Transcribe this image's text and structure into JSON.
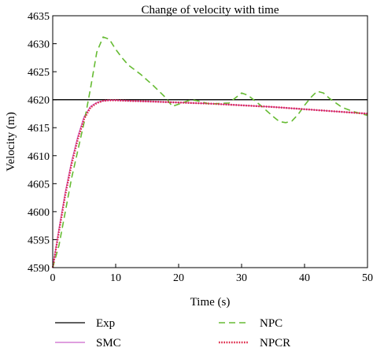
{
  "chart_data": {
    "type": "line",
    "title": "Change of velocity with time",
    "xlabel": "Time (s)",
    "ylabel": "Velocity (m)",
    "xlim": [
      0,
      50
    ],
    "ylim": [
      4590,
      4635
    ],
    "xticks": [
      0,
      10,
      20,
      30,
      40,
      50
    ],
    "yticks": [
      4590,
      4595,
      4600,
      4605,
      4610,
      4615,
      4620,
      4625,
      4630,
      4635
    ],
    "grid": false,
    "legend_position": "bottom",
    "series": [
      {
        "name": "Exp",
        "color": "#000000",
        "style": "solid",
        "x": [
          0,
          50
        ],
        "y": [
          4620,
          4620
        ]
      },
      {
        "name": "SMC",
        "color": "#cc66cc",
        "style": "solid",
        "x": [
          0,
          1,
          2,
          3,
          4,
          5,
          6,
          7,
          8,
          9,
          10,
          12,
          15,
          20,
          25,
          30,
          35,
          40,
          45,
          50
        ],
        "y": [
          4590,
          4597,
          4603.5,
          4609,
          4613.5,
          4617,
          4618.8,
          4619.5,
          4619.8,
          4619.9,
          4619.9,
          4619.8,
          4619.7,
          4619.5,
          4619.3,
          4619.0,
          4618.7,
          4618.3,
          4617.9,
          4617.5
        ]
      },
      {
        "name": "NPC",
        "color": "#66bb33",
        "style": "dashed",
        "x": [
          0,
          1,
          2,
          3,
          4,
          5,
          6,
          7,
          8,
          9,
          10,
          11,
          12,
          14,
          16,
          18,
          19,
          21,
          22,
          23,
          25,
          26,
          28,
          30,
          31,
          33,
          35,
          36,
          37,
          38,
          39,
          40,
          41,
          42,
          43,
          44,
          45,
          46,
          48,
          50
        ],
        "y": [
          4590,
          4594,
          4600,
          4606,
          4611,
          4616,
          4622,
          4628.5,
          4631.2,
          4630.8,
          4629.0,
          4627.5,
          4626.2,
          4624.5,
          4622.5,
          4620.3,
          4618.8,
          4619.6,
          4620.0,
          4619.8,
          4619.2,
          4619.3,
          4619.4,
          4621.2,
          4620.8,
          4619.0,
          4617.0,
          4616.1,
          4615.9,
          4616.2,
          4617.4,
          4619.0,
          4620.4,
          4621.5,
          4621.2,
          4620.2,
          4619.4,
          4618.6,
          4617.8,
          4617.2
        ]
      },
      {
        "name": "NPCR",
        "color": "#dd2244",
        "style": "dotted",
        "x": [
          0,
          1,
          2,
          3,
          4,
          5,
          6,
          7,
          8,
          9,
          10,
          12,
          15,
          20,
          25,
          30,
          35,
          40,
          45,
          50
        ],
        "y": [
          4590,
          4596.5,
          4603,
          4608.5,
          4613,
          4616.6,
          4618.6,
          4619.4,
          4619.8,
          4619.9,
          4619.9,
          4619.8,
          4619.7,
          4619.5,
          4619.3,
          4619.0,
          4618.7,
          4618.3,
          4617.9,
          4617.5
        ]
      }
    ]
  }
}
